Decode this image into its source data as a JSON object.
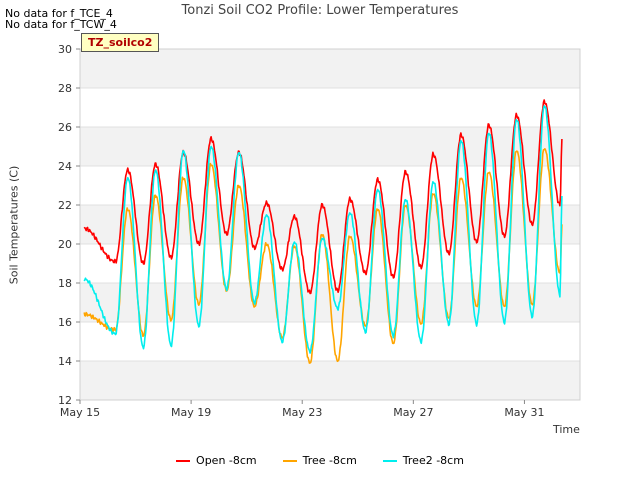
{
  "notices": [
    "No data for f_TCE_4",
    "No data for f_TCW_4"
  ],
  "chart_data": {
    "type": "line",
    "title": "Tonzi Soil CO2 Profile: Lower Temperatures",
    "xlabel": "Time",
    "ylabel": "Soil Temperatures (C)",
    "tag_label": "TZ_soilco2",
    "xlim": [
      "May 15",
      "Jun 2"
    ],
    "ylim": [
      12,
      30
    ],
    "x_ticks": [
      "May 15",
      "May 19",
      "May 23",
      "May 27",
      "May 31"
    ],
    "y_ticks": [
      12,
      14,
      16,
      18,
      20,
      22,
      24,
      26,
      28,
      30
    ],
    "grid": true,
    "legend_position": "bottom",
    "x": [
      "May 15",
      "May 16",
      "May 17",
      "May 18",
      "May 19",
      "May 20",
      "May 21",
      "May 22",
      "May 23",
      "May 24",
      "May 25",
      "May 26",
      "May 27",
      "May 28",
      "May 29",
      "May 30",
      "May 31",
      "Jun 1"
    ],
    "series": [
      {
        "name": "Open -8cm",
        "color": "#ff0000",
        "min": [
          20.8,
          19.1,
          19.0,
          19.3,
          20.0,
          20.5,
          19.8,
          18.7,
          17.5,
          17.6,
          18.5,
          18.3,
          18.8,
          19.5,
          20.1,
          20.4,
          21.0,
          22.0
        ],
        "max": [
          20.8,
          23.8,
          24.1,
          24.7,
          25.4,
          24.7,
          22.1,
          21.4,
          22.0,
          22.3,
          23.3,
          23.7,
          24.6,
          25.6,
          26.1,
          26.6,
          27.3,
          28.3
        ],
        "final": 25.4
      },
      {
        "name": "Tree -8cm",
        "color": "#ffa500",
        "min": [
          16.4,
          15.6,
          15.3,
          16.1,
          16.9,
          17.6,
          16.8,
          15.2,
          13.9,
          14.0,
          15.8,
          14.9,
          15.9,
          16.2,
          16.8,
          16.8,
          16.9,
          18.5
        ],
        "max": [
          16.4,
          21.8,
          22.5,
          23.4,
          24.1,
          23.0,
          20.0,
          19.9,
          20.5,
          20.4,
          21.8,
          22.0,
          22.6,
          23.4,
          23.7,
          24.8,
          24.9,
          26.2
        ],
        "final": 20.9
      },
      {
        "name": "Tree2 -8cm",
        "color": "#00eeee",
        "min": [
          18.2,
          15.4,
          14.7,
          14.8,
          15.8,
          17.7,
          17.0,
          15.0,
          14.5,
          16.7,
          15.5,
          15.3,
          15.0,
          15.9,
          15.9,
          16.0,
          16.3,
          17.4
        ],
        "max": [
          18.2,
          23.4,
          23.8,
          24.8,
          25.0,
          24.7,
          21.5,
          20.1,
          20.3,
          21.6,
          22.8,
          22.3,
          23.2,
          25.3,
          25.7,
          26.4,
          27.1,
          28.1
        ],
        "final": 22.5
      }
    ]
  }
}
